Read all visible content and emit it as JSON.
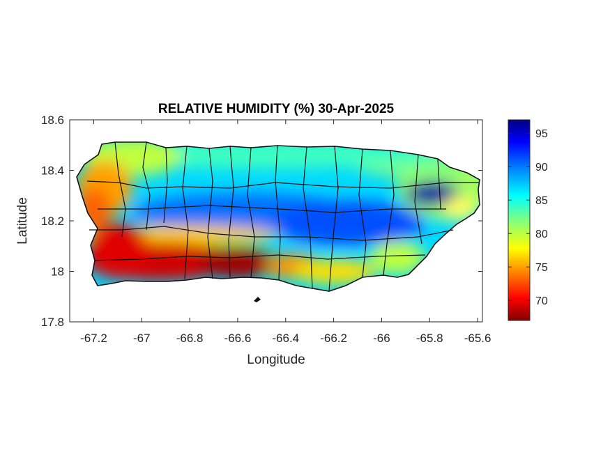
{
  "title": "RELATIVE HUMIDITY (%) 30-Apr-2025",
  "axes": {
    "xlabel": "Longitude",
    "ylabel": "Latitude",
    "xlim": [
      -67.3,
      -65.58
    ],
    "ylim": [
      17.8,
      18.6
    ],
    "xticks": [
      -67.2,
      -67,
      -66.8,
      -66.6,
      -66.4,
      -66.2,
      -66,
      -65.8,
      -65.6
    ],
    "xtick_labels": [
      "-67.2",
      "-67",
      "-66.8",
      "-66.6",
      "-66.4",
      "-66.2",
      "-66",
      "-65.8",
      "-65.6"
    ],
    "yticks": [
      17.8,
      18,
      18.2,
      18.4,
      18.6
    ],
    "ytick_labels": [
      "17.8",
      "18",
      "18.2",
      "18.4",
      "18.6"
    ]
  },
  "colorbar": {
    "min": 67,
    "max": 97,
    "ticks": [
      70,
      75,
      80,
      85,
      90,
      95
    ],
    "tick_labels": [
      "70",
      "75",
      "80",
      "85",
      "90",
      "95"
    ],
    "colormap": "jet",
    "colors": [
      "#800000",
      "#ff0000",
      "#ff8000",
      "#ffff00",
      "#80ff80",
      "#00ffff",
      "#0080ff",
      "#0000ff",
      "#000080"
    ]
  },
  "chart_data": {
    "type": "heatmap",
    "variable": "relative humidity (%)",
    "region_pattern": [
      {
        "lon": -67.15,
        "lat": 18.05,
        "value": 71
      },
      {
        "lon": -66.9,
        "lat": 18.0,
        "value": 70
      },
      {
        "lon": -66.6,
        "lat": 18.02,
        "value": 68
      },
      {
        "lon": -66.4,
        "lat": 18.0,
        "value": 77
      },
      {
        "lon": -66.1,
        "lat": 18.0,
        "value": 80
      },
      {
        "lon": -65.95,
        "lat": 18.05,
        "value": 84
      },
      {
        "lon": -67.15,
        "lat": 18.35,
        "value": 78
      },
      {
        "lon": -66.95,
        "lat": 18.45,
        "value": 82
      },
      {
        "lon": -66.7,
        "lat": 18.22,
        "value": 90
      },
      {
        "lon": -66.5,
        "lat": 18.2,
        "value": 92
      },
      {
        "lon": -66.3,
        "lat": 18.23,
        "value": 91
      },
      {
        "lon": -66.2,
        "lat": 18.15,
        "value": 93
      },
      {
        "lon": -66.05,
        "lat": 18.12,
        "value": 93
      },
      {
        "lon": -65.8,
        "lat": 18.3,
        "value": 96
      },
      {
        "lon": -66.4,
        "lat": 18.45,
        "value": 84
      },
      {
        "lon": -66.0,
        "lat": 18.4,
        "value": 82
      },
      {
        "lon": -65.65,
        "lat": 18.25,
        "value": 80
      }
    ]
  }
}
